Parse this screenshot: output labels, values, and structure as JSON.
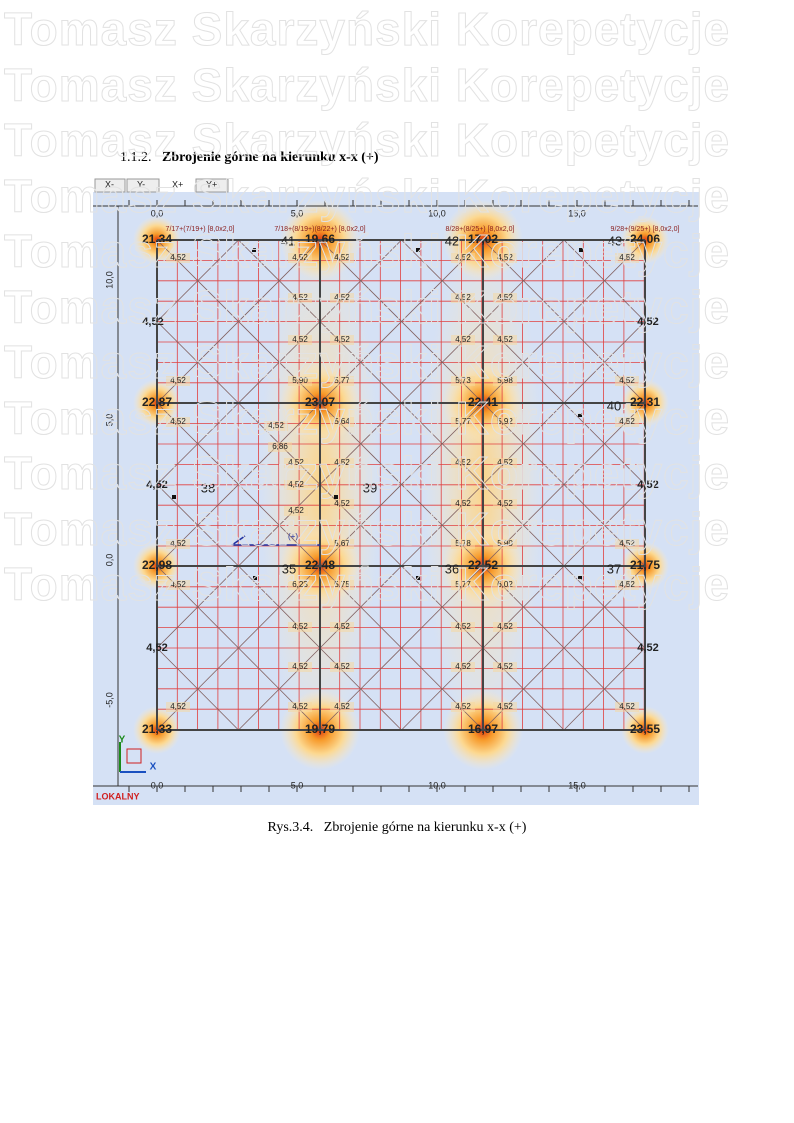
{
  "watermark": "Tomasz Skarzyński Korepetycje",
  "heading": {
    "number": "1.1.2.",
    "title": "Zbrojenie górne na kierunku x-x  (+)"
  },
  "plot": {
    "tabs": [
      "X-",
      "Y-",
      "X+",
      "Y+"
    ],
    "x_axis_top": [
      "0,0",
      "5,0",
      "10,0",
      "15,0"
    ],
    "x_axis_bottom": [
      "0,0",
      "5,0",
      "10,0",
      "15,0"
    ],
    "y_axis": [
      "10,0",
      "5,0",
      "0,0",
      "-5,0"
    ],
    "beam_labels": [
      "7/17+(7/19+) [8,0x2,0]",
      "7/18+(8/19+)(8/22+) [8,0x2,0]",
      "8/28+(8/25+) [8,0x2,0]",
      "9/28+(9/25+) [8,0x2,0]"
    ],
    "node_values": [
      "21,34",
      "19,66",
      "17,02",
      "24,06",
      "22,87",
      "23,07",
      "22,41",
      "22,31",
      "22,98",
      "22,48",
      "22,52",
      "21,75",
      "21,33",
      "19,79",
      "16,97",
      "23,55"
    ],
    "edge_values": [
      "4,52",
      "4,52",
      "4,52",
      "4,52",
      "4,52",
      "4,52"
    ],
    "panel_numbers": [
      "41",
      "42",
      "43",
      "40",
      "39",
      "38",
      "35",
      "36",
      "37"
    ],
    "cell_values": [
      "4,52",
      "4,52",
      "4,52",
      "4,52",
      "4,52",
      "4,52",
      "4,52",
      "4,52",
      "4,52",
      "4,52",
      "4,52",
      "4,52",
      "4,52",
      "4,52",
      "4,52",
      "5,90",
      "5,77",
      "5,73",
      "5,98",
      "4,52",
      "4,52",
      "5,64",
      "5,77",
      "5,92",
      "4,52",
      "4,52",
      "6,86",
      "4,52",
      "4,52",
      "4,52",
      "4,52",
      "4,52",
      "4,52",
      "4,52",
      "4,52",
      "4,52",
      "4,52",
      "5,67",
      "5,78",
      "5,90",
      "4,52",
      "4,52",
      "6,23",
      "5,75",
      "5,77",
      "6,02",
      "4,52",
      "4,52",
      "4,52",
      "4,52",
      "4,52",
      "4,52",
      "4,52",
      "4,52",
      "4,52",
      "4,52",
      "4,52",
      "4,52",
      "4,52",
      "4,52",
      "4,52"
    ],
    "sign": "(+)",
    "axis_x": "X",
    "axis_y": "Y",
    "system": "LOKALNY"
  },
  "caption": {
    "number": "Rys.3.4.",
    "text": "Zbrojenie górne na kierunku x-x    (+)"
  }
}
